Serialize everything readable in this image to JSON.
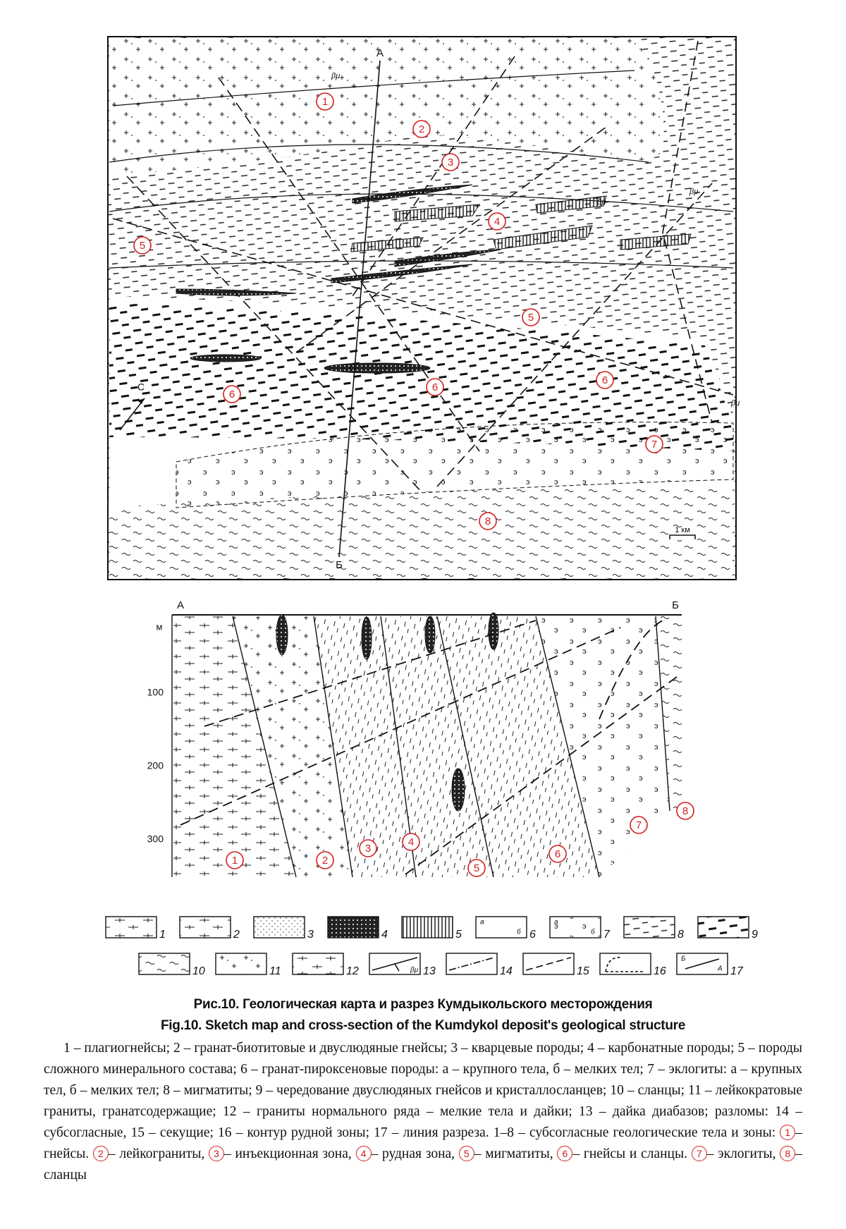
{
  "map": {
    "section_line": {
      "start": "А",
      "end": "Б"
    },
    "north_arrow": "С",
    "scale_bar": "1 км",
    "dike_labels": [
      "βμ",
      "βμ",
      "βμ",
      "βμ"
    ],
    "zone_labels": [
      "1",
      "2",
      "3",
      "4",
      "5",
      "5",
      "6",
      "6",
      "6",
      "7",
      "8"
    ]
  },
  "cross_section": {
    "start": "А",
    "end": "Б",
    "depth_unit": "м",
    "depth_labels": [
      "100",
      "200",
      "300"
    ],
    "zone_labels": [
      "1",
      "2",
      "3",
      "4",
      "5",
      "6",
      "7",
      "8"
    ]
  },
  "legend": {
    "items": [
      {
        "number": "1"
      },
      {
        "number": "2"
      },
      {
        "number": "3"
      },
      {
        "number": "4"
      },
      {
        "number": "5"
      },
      {
        "number": "6",
        "marks": [
          "а",
          "б"
        ]
      },
      {
        "number": "7",
        "marks": [
          "а",
          "б"
        ]
      },
      {
        "number": "8"
      },
      {
        "number": "9"
      },
      {
        "number": "10"
      },
      {
        "number": "11"
      },
      {
        "number": "12"
      },
      {
        "number": "13",
        "marks": [
          "βμ"
        ]
      },
      {
        "number": "14"
      },
      {
        "number": "15"
      },
      {
        "number": "16"
      },
      {
        "number": "17",
        "marks": [
          "Б",
          "А"
        ]
      }
    ]
  },
  "caption": {
    "title_ru": "Рис.10. Геологическая карта и разрез Кумдыкольского месторождения",
    "title_en": "Fig.10. Sketch map and cross-section of the Kumdykol deposit's geological structure",
    "description": "1 – плагиогнейсы; 2 – гранат-биотитовые и двуслюдяные гнейсы; 3 – кварцевые породы; 4 – карбонатные породы; 5 – породы сложного минерального состава; 6 – гранат-пироксеновые породы: а – крупного тела, б – мелких тел; 7 – эклогиты: а – крупных тел, б – мелких тел; 8 – мигматиты; 9 – чередование двуслюдяных гнейсов и кристаллосланцев; 10 – сланцы; 11 – лейкократовые граниты, гранатсодержащие; 12 – граниты нормального ряда – мелкие тела и дайки; 13 – дайка диабазов; разломы: 14 – субсогласные, 15 – секущие; 16 – контур рудной зоны; 17 – линия разреза. 1–8 – субсогласные геологические тела и зоны:",
    "zone_notes": [
      {
        "number": "1",
        "text": "– гнейсы."
      },
      {
        "number": "2",
        "text": "– лейкограниты,"
      },
      {
        "number": "3",
        "text": "– инъекционная зона,"
      },
      {
        "number": "4",
        "text": "– рудная зона,"
      },
      {
        "number": "5",
        "text": "– мигматиты,"
      },
      {
        "number": "6",
        "text": "– гнейсы и сланцы."
      },
      {
        "number": "7",
        "text": "– эклогиты,"
      },
      {
        "number": "8",
        "text": "– сланцы"
      }
    ]
  }
}
